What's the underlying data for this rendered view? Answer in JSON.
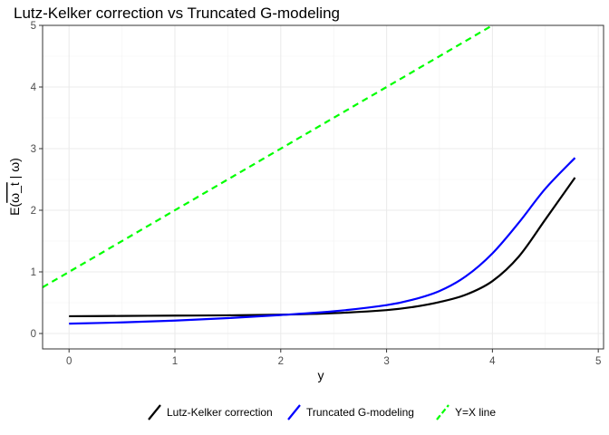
{
  "chart_data": {
    "type": "line",
    "title": "Lutz-Kelker correction vs Truncated G-modeling",
    "xlabel": "y",
    "ylabel": "E(ω_t | ω)",
    "ylabel_parts": {
      "prefix": "E(",
      "overlined": "ω_t",
      "suffix": " | ω)"
    },
    "xlim": [
      -0.25,
      5.05
    ],
    "ylim": [
      -0.25,
      5.0
    ],
    "x_ticks": [
      0,
      1,
      2,
      3,
      4,
      5
    ],
    "y_ticks": [
      0,
      1,
      2,
      3,
      4,
      5
    ],
    "x_tick_labels": [
      "0",
      "1",
      "2",
      "3",
      "4",
      "5"
    ],
    "y_tick_labels": [
      "0",
      "1",
      "2",
      "3",
      "4",
      "5"
    ],
    "grid": true,
    "legend_position": "bottom",
    "series": [
      {
        "name": "Lutz-Kelker correction",
        "color": "#000000",
        "linestyle": "solid",
        "x": [
          0,
          0.5,
          1.0,
          1.5,
          2.0,
          2.5,
          3.0,
          3.25,
          3.5,
          3.75,
          4.0,
          4.25,
          4.5,
          4.78
        ],
        "y": [
          0.28,
          0.285,
          0.29,
          0.295,
          0.305,
          0.33,
          0.38,
          0.43,
          0.51,
          0.63,
          0.85,
          1.25,
          1.85,
          2.53
        ]
      },
      {
        "name": "Truncated G-modeling",
        "color": "#0000ff",
        "linestyle": "solid",
        "x": [
          0,
          0.5,
          1.0,
          1.5,
          2.0,
          2.5,
          3.0,
          3.25,
          3.5,
          3.75,
          4.0,
          4.25,
          4.5,
          4.78
        ],
        "y": [
          0.16,
          0.18,
          0.21,
          0.25,
          0.3,
          0.36,
          0.46,
          0.55,
          0.69,
          0.93,
          1.3,
          1.8,
          2.35,
          2.85
        ]
      },
      {
        "name": "Y=X line",
        "color": "#00ff00",
        "linestyle": "dashed",
        "x": [
          -0.25,
          4.0
        ],
        "y": [
          0.75,
          5.0
        ]
      }
    ]
  }
}
